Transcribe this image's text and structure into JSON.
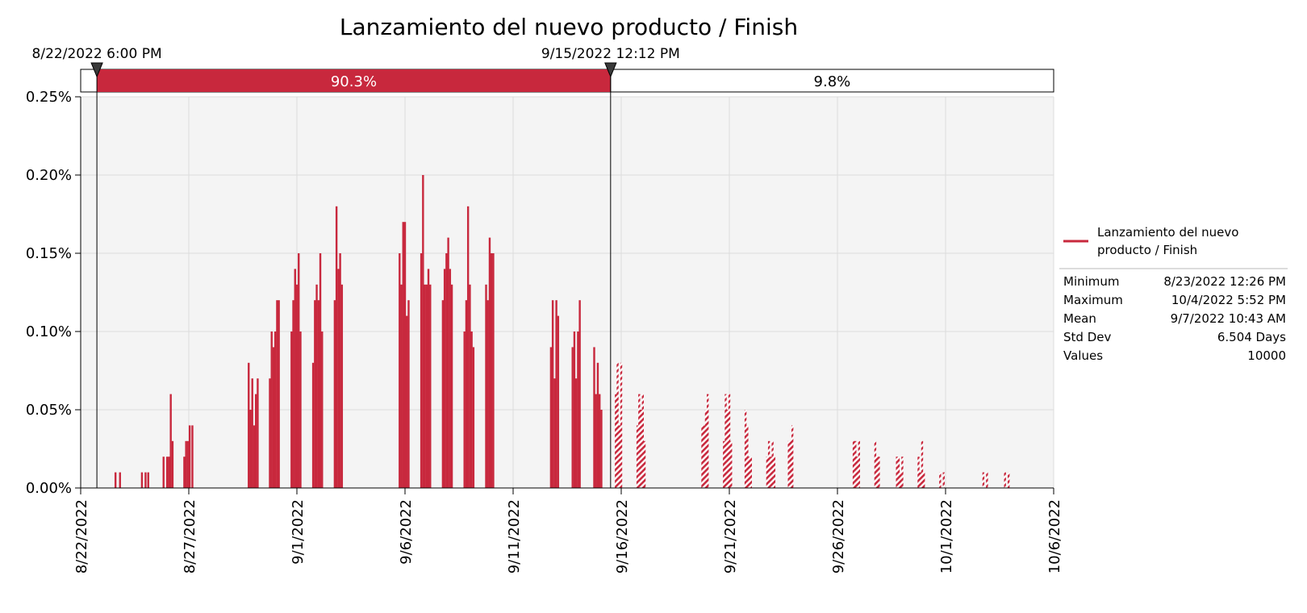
{
  "colors": {
    "series": "#c8283d",
    "plot_background": "#f4f4f4",
    "grid": "#dcdcdc",
    "band_outline": "#000000"
  },
  "chart_data": {
    "type": "bar",
    "title": "Lanzamiento del nuevo producto / Finish",
    "xlabel": "",
    "ylabel": "",
    "x_axis": {
      "type": "date",
      "range": [
        "2022-08-22",
        "2022-10-06"
      ],
      "ticks": [
        {
          "date": "2022-08-22",
          "label": "8/22/2022"
        },
        {
          "date": "2022-08-27",
          "label": "8/27/2022"
        },
        {
          "date": "2022-09-01",
          "label": "9/1/2022"
        },
        {
          "date": "2022-09-06",
          "label": "9/6/2022"
        },
        {
          "date": "2022-09-11",
          "label": "9/11/2022"
        },
        {
          "date": "2022-09-16",
          "label": "9/16/2022"
        },
        {
          "date": "2022-09-21",
          "label": "9/21/2022"
        },
        {
          "date": "2022-09-26",
          "label": "9/26/2022"
        },
        {
          "date": "2022-10-01",
          "label": "10/1/2022"
        },
        {
          "date": "2022-10-06",
          "label": "10/6/2022"
        }
      ]
    },
    "y_axis": {
      "range": [
        0,
        0.25
      ],
      "unit": "%",
      "ticks": [
        {
          "value": 0,
          "label": "0.00%"
        },
        {
          "value": 0.05,
          "label": "0.05%"
        },
        {
          "value": 0.1,
          "label": "0.10%"
        },
        {
          "value": 0.15,
          "label": "0.15%"
        },
        {
          "value": 0.2,
          "label": "0.20%"
        },
        {
          "value": 0.25,
          "label": "0.25%"
        }
      ]
    },
    "grid": true,
    "markers": [
      {
        "datetime": "2022-08-22 18:00",
        "label": "8/22/2022 6:00 PM"
      },
      {
        "datetime": "2022-09-15 12:12",
        "label": "9/15/2022 12:12 PM"
      }
    ],
    "bands": [
      {
        "label": "90.3%",
        "percent": 90.3,
        "filled": true
      },
      {
        "label": "9.8%",
        "percent": 9.8,
        "filled": false
      }
    ],
    "bar_width_days": 0.045,
    "bars": [
      {
        "date": "2022-08-23 14:40",
        "value": 0.01
      },
      {
        "date": "2022-08-23 19:40",
        "value": 0.01
      },
      {
        "date": "2022-08-24 20:00",
        "value": 0.01
      },
      {
        "date": "2022-08-25 00:00",
        "value": 0.01
      },
      {
        "date": "2022-08-25 03:00",
        "value": 0.01
      },
      {
        "date": "2022-08-25 20:00",
        "value": 0.02
      },
      {
        "date": "2022-08-26 00:00",
        "value": 0.02
      },
      {
        "date": "2022-08-26 02:00",
        "value": 0.02
      },
      {
        "date": "2022-08-26 04:00",
        "value": 0.06
      },
      {
        "date": "2022-08-26 06:00",
        "value": 0.03
      },
      {
        "date": "2022-08-26 19:00",
        "value": 0.02
      },
      {
        "date": "2022-08-26 21:00",
        "value": 0.03
      },
      {
        "date": "2022-08-26 23:00",
        "value": 0.03
      },
      {
        "date": "2022-08-27 01:00",
        "value": 0.04
      },
      {
        "date": "2022-08-27 04:00",
        "value": 0.04
      },
      {
        "date": "2022-08-29 18:30",
        "value": 0.08
      },
      {
        "date": "2022-08-29 20:30",
        "value": 0.05
      },
      {
        "date": "2022-08-29 22:30",
        "value": 0.07
      },
      {
        "date": "2022-08-30 00:30",
        "value": 0.04
      },
      {
        "date": "2022-08-30 02:30",
        "value": 0.06
      },
      {
        "date": "2022-08-30 04:30",
        "value": 0.07
      },
      {
        "date": "2022-08-30 18:00",
        "value": 0.07
      },
      {
        "date": "2022-08-30 20:00",
        "value": 0.1
      },
      {
        "date": "2022-08-30 22:00",
        "value": 0.09
      },
      {
        "date": "2022-08-31 00:00",
        "value": 0.1
      },
      {
        "date": "2022-08-31 02:00",
        "value": 0.12
      },
      {
        "date": "2022-08-31 04:00",
        "value": 0.12
      },
      {
        "date": "2022-08-31 18:00",
        "value": 0.1
      },
      {
        "date": "2022-08-31 20:00",
        "value": 0.12
      },
      {
        "date": "2022-08-31 22:00",
        "value": 0.14
      },
      {
        "date": "2022-09-01 00:00",
        "value": 0.13
      },
      {
        "date": "2022-09-01 02:00",
        "value": 0.15
      },
      {
        "date": "2022-09-01 04:00",
        "value": 0.1
      },
      {
        "date": "2022-09-01 18:00",
        "value": 0.08
      },
      {
        "date": "2022-09-01 20:00",
        "value": 0.12
      },
      {
        "date": "2022-09-01 22:00",
        "value": 0.13
      },
      {
        "date": "2022-09-02 00:00",
        "value": 0.12
      },
      {
        "date": "2022-09-02 02:00",
        "value": 0.15
      },
      {
        "date": "2022-09-02 04:00",
        "value": 0.1
      },
      {
        "date": "2022-09-02 18:00",
        "value": 0.12
      },
      {
        "date": "2022-09-02 20:00",
        "value": 0.18
      },
      {
        "date": "2022-09-02 22:00",
        "value": 0.14
      },
      {
        "date": "2022-09-03 00:00",
        "value": 0.15
      },
      {
        "date": "2022-09-03 02:00",
        "value": 0.13
      },
      {
        "date": "2022-09-05 18:00",
        "value": 0.15
      },
      {
        "date": "2022-09-05 20:00",
        "value": 0.13
      },
      {
        "date": "2022-09-05 22:00",
        "value": 0.17
      },
      {
        "date": "2022-09-06 00:00",
        "value": 0.17
      },
      {
        "date": "2022-09-06 02:00",
        "value": 0.11
      },
      {
        "date": "2022-09-06 04:00",
        "value": 0.12
      },
      {
        "date": "2022-09-06 18:00",
        "value": 0.15
      },
      {
        "date": "2022-09-06 20:00",
        "value": 0.2
      },
      {
        "date": "2022-09-06 22:00",
        "value": 0.13
      },
      {
        "date": "2022-09-07 00:00",
        "value": 0.13
      },
      {
        "date": "2022-09-07 02:00",
        "value": 0.14
      },
      {
        "date": "2022-09-07 04:00",
        "value": 0.13
      },
      {
        "date": "2022-09-07 18:00",
        "value": 0.12
      },
      {
        "date": "2022-09-07 20:00",
        "value": 0.14
      },
      {
        "date": "2022-09-07 22:00",
        "value": 0.15
      },
      {
        "date": "2022-09-08 00:00",
        "value": 0.16
      },
      {
        "date": "2022-09-08 02:00",
        "value": 0.14
      },
      {
        "date": "2022-09-08 04:00",
        "value": 0.13
      },
      {
        "date": "2022-09-08 18:00",
        "value": 0.1
      },
      {
        "date": "2022-09-08 20:00",
        "value": 0.12
      },
      {
        "date": "2022-09-08 22:00",
        "value": 0.18
      },
      {
        "date": "2022-09-09 00:00",
        "value": 0.13
      },
      {
        "date": "2022-09-09 02:00",
        "value": 0.1
      },
      {
        "date": "2022-09-09 04:00",
        "value": 0.09
      },
      {
        "date": "2022-09-09 18:00",
        "value": 0.13
      },
      {
        "date": "2022-09-09 20:00",
        "value": 0.12
      },
      {
        "date": "2022-09-09 22:00",
        "value": 0.16
      },
      {
        "date": "2022-09-10 00:00",
        "value": 0.15
      },
      {
        "date": "2022-09-10 02:00",
        "value": 0.15
      },
      {
        "date": "2022-09-12 18:00",
        "value": 0.09
      },
      {
        "date": "2022-09-12 20:00",
        "value": 0.12
      },
      {
        "date": "2022-09-12 22:00",
        "value": 0.07
      },
      {
        "date": "2022-09-13 00:00",
        "value": 0.12
      },
      {
        "date": "2022-09-13 02:00",
        "value": 0.11
      },
      {
        "date": "2022-09-13 18:00",
        "value": 0.09
      },
      {
        "date": "2022-09-13 20:00",
        "value": 0.1
      },
      {
        "date": "2022-09-13 22:00",
        "value": 0.07
      },
      {
        "date": "2022-09-14 00:00",
        "value": 0.1
      },
      {
        "date": "2022-09-14 02:00",
        "value": 0.12
      },
      {
        "date": "2022-09-14 18:00",
        "value": 0.09
      },
      {
        "date": "2022-09-14 20:00",
        "value": 0.06
      },
      {
        "date": "2022-09-14 22:00",
        "value": 0.08
      },
      {
        "date": "2022-09-15 00:00",
        "value": 0.06
      },
      {
        "date": "2022-09-15 02:00",
        "value": 0.05
      },
      {
        "date": "2022-09-15 18:00",
        "value": 0.06
      },
      {
        "date": "2022-09-15 20:00",
        "value": 0.08
      },
      {
        "date": "2022-09-15 22:00",
        "value": 0.04
      },
      {
        "date": "2022-09-16 00:00",
        "value": 0.08
      },
      {
        "date": "2022-09-16 18:00",
        "value": 0.04
      },
      {
        "date": "2022-09-16 20:00",
        "value": 0.06
      },
      {
        "date": "2022-09-16 22:00",
        "value": 0.05
      },
      {
        "date": "2022-09-17 00:00",
        "value": 0.06
      },
      {
        "date": "2022-09-17 02:00",
        "value": 0.03
      },
      {
        "date": "2022-09-19 18:00",
        "value": 0.04
      },
      {
        "date": "2022-09-19 20:00",
        "value": 0.04
      },
      {
        "date": "2022-09-19 22:00",
        "value": 0.05
      },
      {
        "date": "2022-09-20 00:00",
        "value": 0.06
      },
      {
        "date": "2022-09-20 18:00",
        "value": 0.03
      },
      {
        "date": "2022-09-20 20:00",
        "value": 0.06
      },
      {
        "date": "2022-09-20 22:00",
        "value": 0.05
      },
      {
        "date": "2022-09-21 00:00",
        "value": 0.06
      },
      {
        "date": "2022-09-21 02:00",
        "value": 0.03
      },
      {
        "date": "2022-09-21 18:00",
        "value": 0.05
      },
      {
        "date": "2022-09-21 20:00",
        "value": 0.04
      },
      {
        "date": "2022-09-21 22:00",
        "value": 0.02
      },
      {
        "date": "2022-09-22 00:00",
        "value": 0.02
      },
      {
        "date": "2022-09-22 18:00",
        "value": 0.02
      },
      {
        "date": "2022-09-22 20:00",
        "value": 0.03
      },
      {
        "date": "2022-09-22 22:00",
        "value": 0.02
      },
      {
        "date": "2022-09-23 00:00",
        "value": 0.03
      },
      {
        "date": "2022-09-23 02:00",
        "value": 0.02
      },
      {
        "date": "2022-09-23 18:00",
        "value": 0.03
      },
      {
        "date": "2022-09-23 20:00",
        "value": 0.03
      },
      {
        "date": "2022-09-23 22:00",
        "value": 0.04
      },
      {
        "date": "2022-09-26 18:00",
        "value": 0.03
      },
      {
        "date": "2022-09-26 20:00",
        "value": 0.03
      },
      {
        "date": "2022-09-26 22:00",
        "value": 0.02
      },
      {
        "date": "2022-09-27 00:00",
        "value": 0.03
      },
      {
        "date": "2022-09-27 18:00",
        "value": 0.03
      },
      {
        "date": "2022-09-27 20:00",
        "value": 0.02
      },
      {
        "date": "2022-09-27 22:00",
        "value": 0.02
      },
      {
        "date": "2022-09-28 18:00",
        "value": 0.02
      },
      {
        "date": "2022-09-28 20:00",
        "value": 0.02
      },
      {
        "date": "2022-09-28 22:00",
        "value": 0.01
      },
      {
        "date": "2022-09-29 00:00",
        "value": 0.02
      },
      {
        "date": "2022-09-29 18:00",
        "value": 0.02
      },
      {
        "date": "2022-09-29 20:00",
        "value": 0.01
      },
      {
        "date": "2022-09-29 22:00",
        "value": 0.03
      },
      {
        "date": "2022-09-30 00:00",
        "value": 0.01
      },
      {
        "date": "2022-09-30 18:00",
        "value": 0.01
      },
      {
        "date": "2022-09-30 22:00",
        "value": 0.01
      },
      {
        "date": "2022-10-02 18:00",
        "value": 0.01
      },
      {
        "date": "2022-10-02 22:00",
        "value": 0.01
      },
      {
        "date": "2022-10-03 18:00",
        "value": 0.01
      },
      {
        "date": "2022-10-03 22:00",
        "value": 0.01
      }
    ],
    "legend": {
      "entries": [
        "Lanzamiento del nuevo producto / Finish"
      ],
      "placement": "right"
    },
    "stats": [
      {
        "label": "Minimum",
        "value": "8/23/2022 12:26 PM"
      },
      {
        "label": "Maximum",
        "value": "10/4/2022 5:52 PM"
      },
      {
        "label": "Mean",
        "value": "9/7/2022 10:43 AM"
      },
      {
        "label": "Std Dev",
        "value": "6.504 Days"
      },
      {
        "label": "Values",
        "value": "10000"
      }
    ]
  }
}
